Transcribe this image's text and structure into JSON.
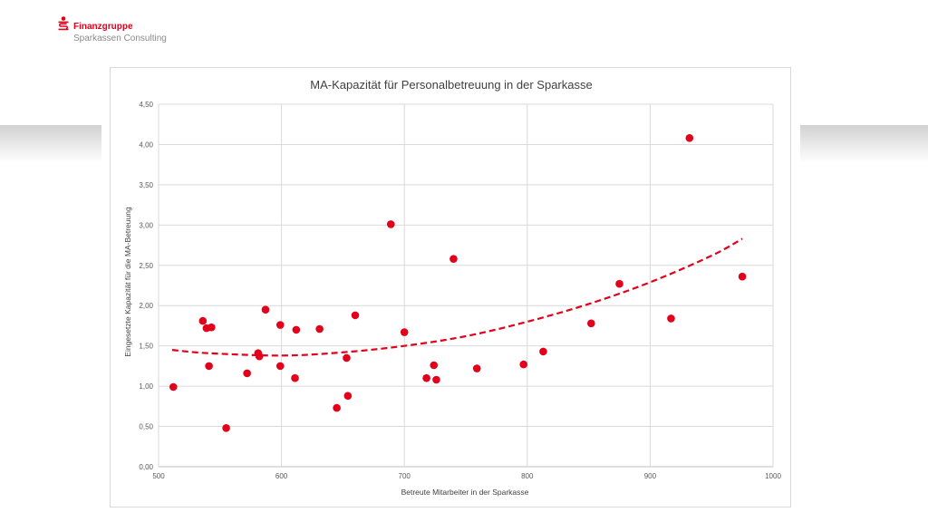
{
  "header": {
    "brand_line1": "Finanzgruppe",
    "brand_line2": "Sparkassen Consulting",
    "brand_color": "#e2001a",
    "logo_icon": "sparkasse-s-icon"
  },
  "chart_data": {
    "type": "scatter",
    "title": "MA-Kapazität für Personalbetreuung in der Sparkasse",
    "xlabel": "Betreute Mitarbeiter in der Sparkasse",
    "ylabel": "Eingesetzte Kapazität für die MA-Betreuung",
    "xlim": [
      500,
      1000
    ],
    "ylim": [
      0,
      4.5
    ],
    "x_ticks": [
      "500",
      "600",
      "700",
      "800",
      "900",
      "1000"
    ],
    "y_ticks": [
      "0,00",
      "0,50",
      "1,00",
      "1,50",
      "2,00",
      "2,50",
      "3,00",
      "3,50",
      "4,00",
      "4,50"
    ],
    "grid": true,
    "marker_color": "#e2001a",
    "trendline": {
      "type": "polynomial-2",
      "style": "dashed",
      "color": "#e2001a",
      "points": [
        [
          511,
          1.45
        ],
        [
          540,
          1.41
        ],
        [
          600,
          1.38
        ],
        [
          650,
          1.42
        ],
        [
          700,
          1.5
        ],
        [
          750,
          1.62
        ],
        [
          800,
          1.8
        ],
        [
          850,
          2.02
        ],
        [
          900,
          2.29
        ],
        [
          950,
          2.62
        ],
        [
          975,
          2.83
        ]
      ]
    },
    "points": [
      {
        "x": 512,
        "y": 0.99
      },
      {
        "x": 536,
        "y": 1.81
      },
      {
        "x": 539,
        "y": 1.72
      },
      {
        "x": 541,
        "y": 1.25
      },
      {
        "x": 543,
        "y": 1.73
      },
      {
        "x": 555,
        "y": 0.48
      },
      {
        "x": 572,
        "y": 1.16
      },
      {
        "x": 581,
        "y": 1.41
      },
      {
        "x": 582,
        "y": 1.37
      },
      {
        "x": 587,
        "y": 1.95
      },
      {
        "x": 599,
        "y": 1.76
      },
      {
        "x": 599,
        "y": 1.25
      },
      {
        "x": 611,
        "y": 1.1
      },
      {
        "x": 612,
        "y": 1.7
      },
      {
        "x": 631,
        "y": 1.71
      },
      {
        "x": 645,
        "y": 0.73
      },
      {
        "x": 653,
        "y": 1.35
      },
      {
        "x": 654,
        "y": 0.88
      },
      {
        "x": 660,
        "y": 1.88
      },
      {
        "x": 689,
        "y": 3.01
      },
      {
        "x": 700,
        "y": 1.67
      },
      {
        "x": 718,
        "y": 1.1
      },
      {
        "x": 724,
        "y": 1.26
      },
      {
        "x": 726,
        "y": 1.08
      },
      {
        "x": 740,
        "y": 2.58
      },
      {
        "x": 759,
        "y": 1.22
      },
      {
        "x": 797,
        "y": 1.27
      },
      {
        "x": 813,
        "y": 1.43
      },
      {
        "x": 852,
        "y": 1.78
      },
      {
        "x": 875,
        "y": 2.27
      },
      {
        "x": 917,
        "y": 1.84
      },
      {
        "x": 932,
        "y": 4.08
      },
      {
        "x": 975,
        "y": 2.36
      }
    ]
  }
}
